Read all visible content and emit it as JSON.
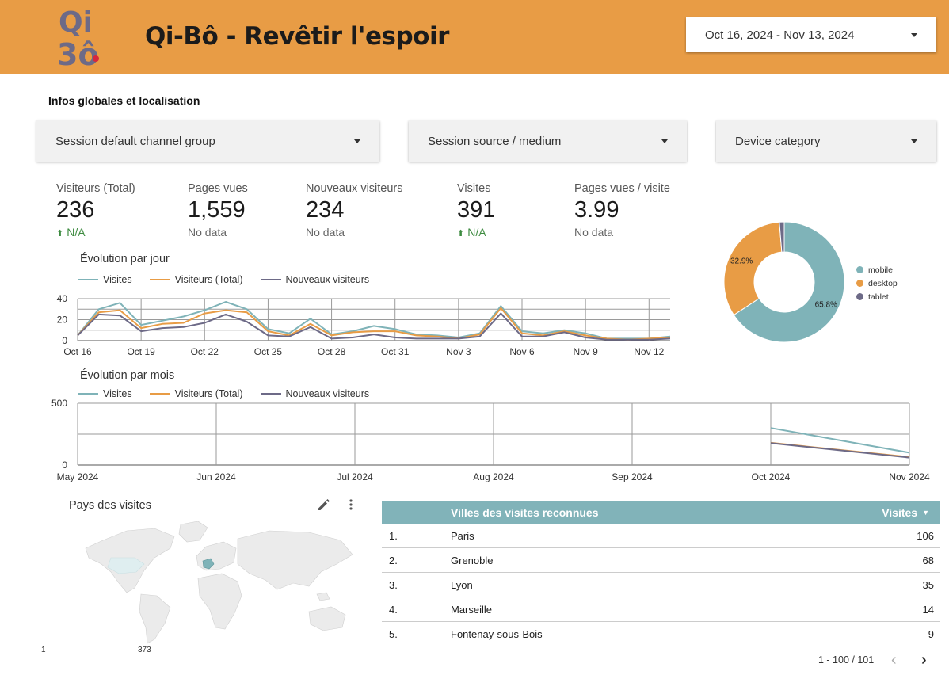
{
  "header": {
    "title": "Qi-Bô - Revêtir l'espoir",
    "logo_text": "Qi-Bô",
    "date_range": "Oct 16, 2024 - Nov 13, 2024",
    "bg_color": "#e89c45"
  },
  "section_title": "Infos globales et localisation",
  "filters": {
    "channel": "Session default channel group",
    "source": "Session source / medium",
    "device": "Device category"
  },
  "kpis": [
    {
      "label": "Visiteurs (Total)",
      "value": "236",
      "delta": "N/A"
    },
    {
      "label": "Pages vues",
      "value": "1,559",
      "note": "No data"
    },
    {
      "label": "Nouveaux visiteurs",
      "value": "234",
      "note": "No data"
    },
    {
      "label": "Visites",
      "value": "391",
      "delta": "N/A"
    },
    {
      "label": "Pages vues / visite",
      "value": "3.99",
      "note": "No data"
    }
  ],
  "daily": {
    "title": "Évolution par jour",
    "legend": [
      "Visites",
      "Visiteurs (Total)",
      "Nouveaux visiteurs"
    ]
  },
  "monthly": {
    "title": "Évolution par mois",
    "legend": [
      "Visites",
      "Visiteurs (Total)",
      "Nouveaux visiteurs"
    ]
  },
  "donut": {
    "legend": [
      "mobile",
      "desktop",
      "tablet"
    ]
  },
  "map": {
    "title": "Pays des visites",
    "scale_min": "1",
    "scale_max": "373",
    "edit_icon": "pencil-icon",
    "menu_icon": "more-vert-icon"
  },
  "table": {
    "header_city": "Villes des visites reconnues",
    "header_value": "Visites",
    "rows": [
      {
        "idx": "1.",
        "city": "Paris",
        "value": "106"
      },
      {
        "idx": "2.",
        "city": "Grenoble",
        "value": "68"
      },
      {
        "idx": "3.",
        "city": "Lyon",
        "value": "35"
      },
      {
        "idx": "4.",
        "city": "Marseille",
        "value": "14"
      },
      {
        "idx": "5.",
        "city": "Fontenay-sous-Bois",
        "value": "9"
      }
    ],
    "pagination": "1 - 100 / 101",
    "prev_icon": "chevron-left-icon",
    "next_icon": "chevron-right-icon"
  },
  "colors": {
    "visites": "#7fb3b8",
    "visiteurs": "#e89c45",
    "nouveaux": "#6d6a87",
    "mobile": "#7fb3b8",
    "desktop": "#e89c45",
    "tablet": "#6d6a87"
  },
  "chart_data": [
    {
      "type": "line",
      "title": "Évolution par jour",
      "x": [
        "Oct 16",
        "Oct 17",
        "Oct 18",
        "Oct 19",
        "Oct 20",
        "Oct 21",
        "Oct 22",
        "Oct 23",
        "Oct 24",
        "Oct 25",
        "Oct 26",
        "Oct 27",
        "Oct 28",
        "Oct 29",
        "Oct 30",
        "Oct 31",
        "Nov 1",
        "Nov 2",
        "Nov 3",
        "Nov 4",
        "Nov 5",
        "Nov 6",
        "Nov 7",
        "Nov 8",
        "Nov 9",
        "Nov 10",
        "Nov 11",
        "Nov 12",
        "Nov 13"
      ],
      "x_tick_labels": [
        "Oct 16",
        "Oct 19",
        "Oct 22",
        "Oct 25",
        "Oct 28",
        "Oct 31",
        "Nov 3",
        "Nov 6",
        "Nov 9",
        "Nov 12"
      ],
      "ylim": [
        0,
        40
      ],
      "y_ticks": [
        0,
        20,
        40
      ],
      "series": [
        {
          "name": "Visites",
          "values": [
            5,
            30,
            36,
            15,
            19,
            23,
            29,
            37,
            30,
            11,
            7,
            21,
            6,
            9,
            14,
            11,
            6,
            5,
            3,
            7,
            33,
            9,
            7,
            10,
            7,
            2,
            2,
            2,
            4
          ]
        },
        {
          "name": "Visiteurs (Total)",
          "values": [
            5,
            27,
            29,
            12,
            16,
            17,
            26,
            29,
            27,
            9,
            5,
            16,
            5,
            8,
            9,
            9,
            5,
            4,
            2,
            6,
            31,
            7,
            5,
            9,
            5,
            2,
            1,
            2,
            3
          ]
        },
        {
          "name": "Nouveaux visiteurs",
          "values": [
            5,
            25,
            24,
            9,
            12,
            13,
            17,
            25,
            18,
            5,
            4,
            13,
            2,
            3,
            6,
            3,
            2,
            2,
            2,
            4,
            26,
            4,
            4,
            8,
            3,
            1,
            1,
            1,
            2
          ]
        }
      ]
    },
    {
      "type": "line",
      "title": "Évolution par mois",
      "x": [
        "May 2024",
        "Jun 2024",
        "Jul 2024",
        "Aug 2024",
        "Sep 2024",
        "Oct 2024",
        "Nov 2024"
      ],
      "ylim": [
        0,
        500
      ],
      "y_ticks": [
        0,
        500
      ],
      "series": [
        {
          "name": "Visites",
          "values": [
            null,
            null,
            null,
            null,
            null,
            300,
            100
          ]
        },
        {
          "name": "Visiteurs (Total)",
          "values": [
            null,
            null,
            null,
            null,
            null,
            180,
            65
          ]
        },
        {
          "name": "Nouveaux visiteurs",
          "values": [
            null,
            null,
            null,
            null,
            null,
            178,
            60
          ]
        }
      ]
    },
    {
      "type": "pie",
      "categories": [
        "mobile",
        "desktop",
        "tablet"
      ],
      "values": [
        65.8,
        32.9,
        1.3
      ],
      "labels": [
        "65.8%",
        "32.9%",
        ""
      ]
    }
  ]
}
